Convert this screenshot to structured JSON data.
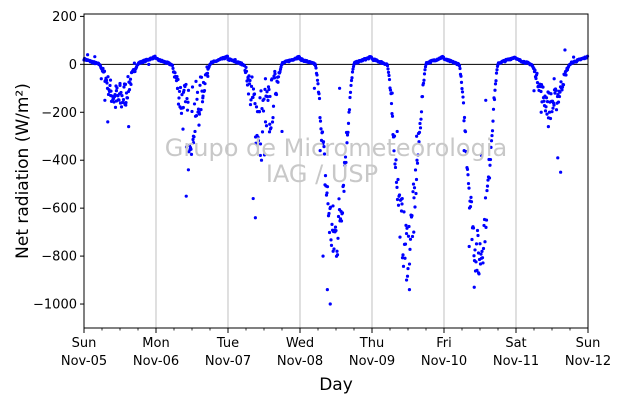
{
  "chart_data": {
    "type": "scatter",
    "title": "",
    "xlabel": "Day",
    "ylabel": "Net radiation (W/m²)",
    "xlim": [
      0,
      7
    ],
    "ylim": [
      -1100,
      210
    ],
    "yticks": [
      200,
      0,
      -200,
      -400,
      -600,
      -800,
      -1000
    ],
    "xticks": [
      {
        "x": 0,
        "day": "Sun",
        "date": "Nov-05"
      },
      {
        "x": 1,
        "day": "Mon",
        "date": "Nov-06"
      },
      {
        "x": 2,
        "day": "Tue",
        "date": "Nov-07"
      },
      {
        "x": 3,
        "day": "Wed",
        "date": "Nov-08"
      },
      {
        "x": 4,
        "day": "Thu",
        "date": "Nov-09"
      },
      {
        "x": 5,
        "day": "Fri",
        "date": "Nov-10"
      },
      {
        "x": 6,
        "day": "Sat",
        "date": "Nov-11"
      },
      {
        "x": 7,
        "day": "Sun",
        "date": "Nov-12"
      }
    ],
    "vertical_gridlines_at_x": [
      1,
      2,
      3,
      4,
      5,
      6
    ],
    "zero_line": true,
    "marker_color": "#0000ff",
    "series": [
      {
        "days": [
          {
            "start": 0,
            "end": 1,
            "peak": -150,
            "noise": 70
          },
          {
            "start": 1,
            "end": 2,
            "peak": -230,
            "noise": 150
          },
          {
            "start": 2,
            "end": 3,
            "peak": -250,
            "noise": 170
          },
          {
            "start": 3,
            "end": 4,
            "peak": -720,
            "noise": 140
          },
          {
            "start": 4,
            "end": 5,
            "peak": -760,
            "noise": 130
          },
          {
            "start": 5,
            "end": 6,
            "peak": -800,
            "noise": 110
          },
          {
            "start": 6,
            "end": 7,
            "peak": -170,
            "noise": 60
          }
        ],
        "points": [
          [
            0.05,
            40
          ],
          [
            0.15,
            32
          ],
          [
            0.24,
            -60
          ],
          [
            0.29,
            -150
          ],
          [
            0.33,
            -240
          ],
          [
            0.37,
            -130
          ],
          [
            0.45,
            -110
          ],
          [
            0.5,
            -80
          ],
          [
            0.58,
            -170
          ],
          [
            0.62,
            -260
          ],
          [
            0.7,
            5
          ],
          [
            0.9,
            0
          ],
          [
            1.3,
            -100
          ],
          [
            1.38,
            -180
          ],
          [
            1.42,
            -550
          ],
          [
            1.45,
            -440
          ],
          [
            1.52,
            -300
          ],
          [
            1.6,
            -200
          ],
          [
            1.65,
            -140
          ],
          [
            1.72,
            -50
          ],
          [
            2.1,
            20
          ],
          [
            2.28,
            -60
          ],
          [
            2.35,
            -560
          ],
          [
            2.38,
            -640
          ],
          [
            2.45,
            -380
          ],
          [
            2.52,
            -60
          ],
          [
            2.58,
            -250
          ],
          [
            2.65,
            -30
          ],
          [
            2.75,
            -280
          ],
          [
            3.2,
            -100
          ],
          [
            3.28,
            -360
          ],
          [
            3.32,
            -800
          ],
          [
            3.38,
            -940
          ],
          [
            3.42,
            -1000
          ],
          [
            3.46,
            -780
          ],
          [
            3.55,
            -100
          ],
          [
            4.28,
            -120
          ],
          [
            4.35,
            -280
          ],
          [
            4.42,
            -560
          ],
          [
            4.48,
            -900
          ],
          [
            4.52,
            -940
          ],
          [
            4.58,
            -700
          ],
          [
            4.62,
            -300
          ],
          [
            5.28,
            -360
          ],
          [
            5.35,
            -760
          ],
          [
            5.42,
            -930
          ],
          [
            5.48,
            -870
          ],
          [
            5.52,
            -380
          ],
          [
            5.58,
            -150
          ],
          [
            6.25,
            -110
          ],
          [
            6.35,
            -200
          ],
          [
            6.45,
            -260
          ],
          [
            6.53,
            -60
          ],
          [
            6.58,
            -390
          ],
          [
            6.62,
            -450
          ],
          [
            6.68,
            60
          ],
          [
            6.8,
            30
          ]
        ]
      }
    ]
  },
  "watermark": {
    "line1": "Grupo de Micrometeorologia",
    "line2": "IAG / USP"
  }
}
